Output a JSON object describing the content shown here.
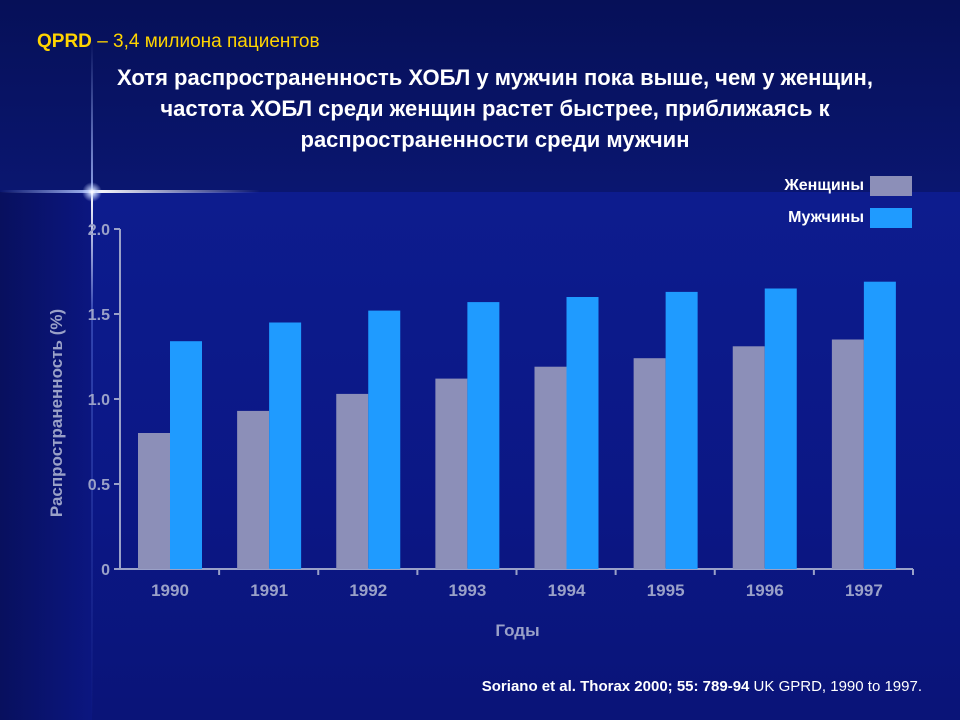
{
  "header": {
    "brand": "QPRD",
    "subtitle": "– 3,4 милиона пациентов"
  },
  "title": "Хотя распространенность ХОБЛ у мужчин пока выше, чем у женщин, частота ХОБЛ среди женщин растет быстрее, приближаясь к распространенности среди мужчин",
  "colors": {
    "women": "#8c8fb8",
    "men": "#1f9bff",
    "axis": "#9aa1c8",
    "tick_text": "#9aa1c8",
    "header_accent": "#ffd400"
  },
  "chart_data": {
    "type": "bar",
    "categories": [
      "1990",
      "1991",
      "1992",
      "1993",
      "1994",
      "1995",
      "1996",
      "1997"
    ],
    "series": [
      {
        "name": "Женщины",
        "values": [
          0.8,
          0.93,
          1.03,
          1.12,
          1.19,
          1.24,
          1.31,
          1.35
        ]
      },
      {
        "name": "Мужчины",
        "values": [
          1.34,
          1.45,
          1.52,
          1.57,
          1.6,
          1.63,
          1.65,
          1.69
        ]
      }
    ],
    "yticks": [
      "0",
      "0.5",
      "1.0",
      "1.5",
      "2.0"
    ],
    "ytick_values": [
      0,
      0.5,
      1.0,
      1.5,
      2.0
    ],
    "ylim": [
      0,
      2.0
    ],
    "xlabel": "Годы",
    "ylabel": "Распространенность (%)",
    "legend_position": "top-right",
    "grid": false
  },
  "source": {
    "bold_part": "Soriano et al. Thorax 2000; 55: 789-94",
    "normal_part": " UK GPRD, 1990 to 1997."
  }
}
